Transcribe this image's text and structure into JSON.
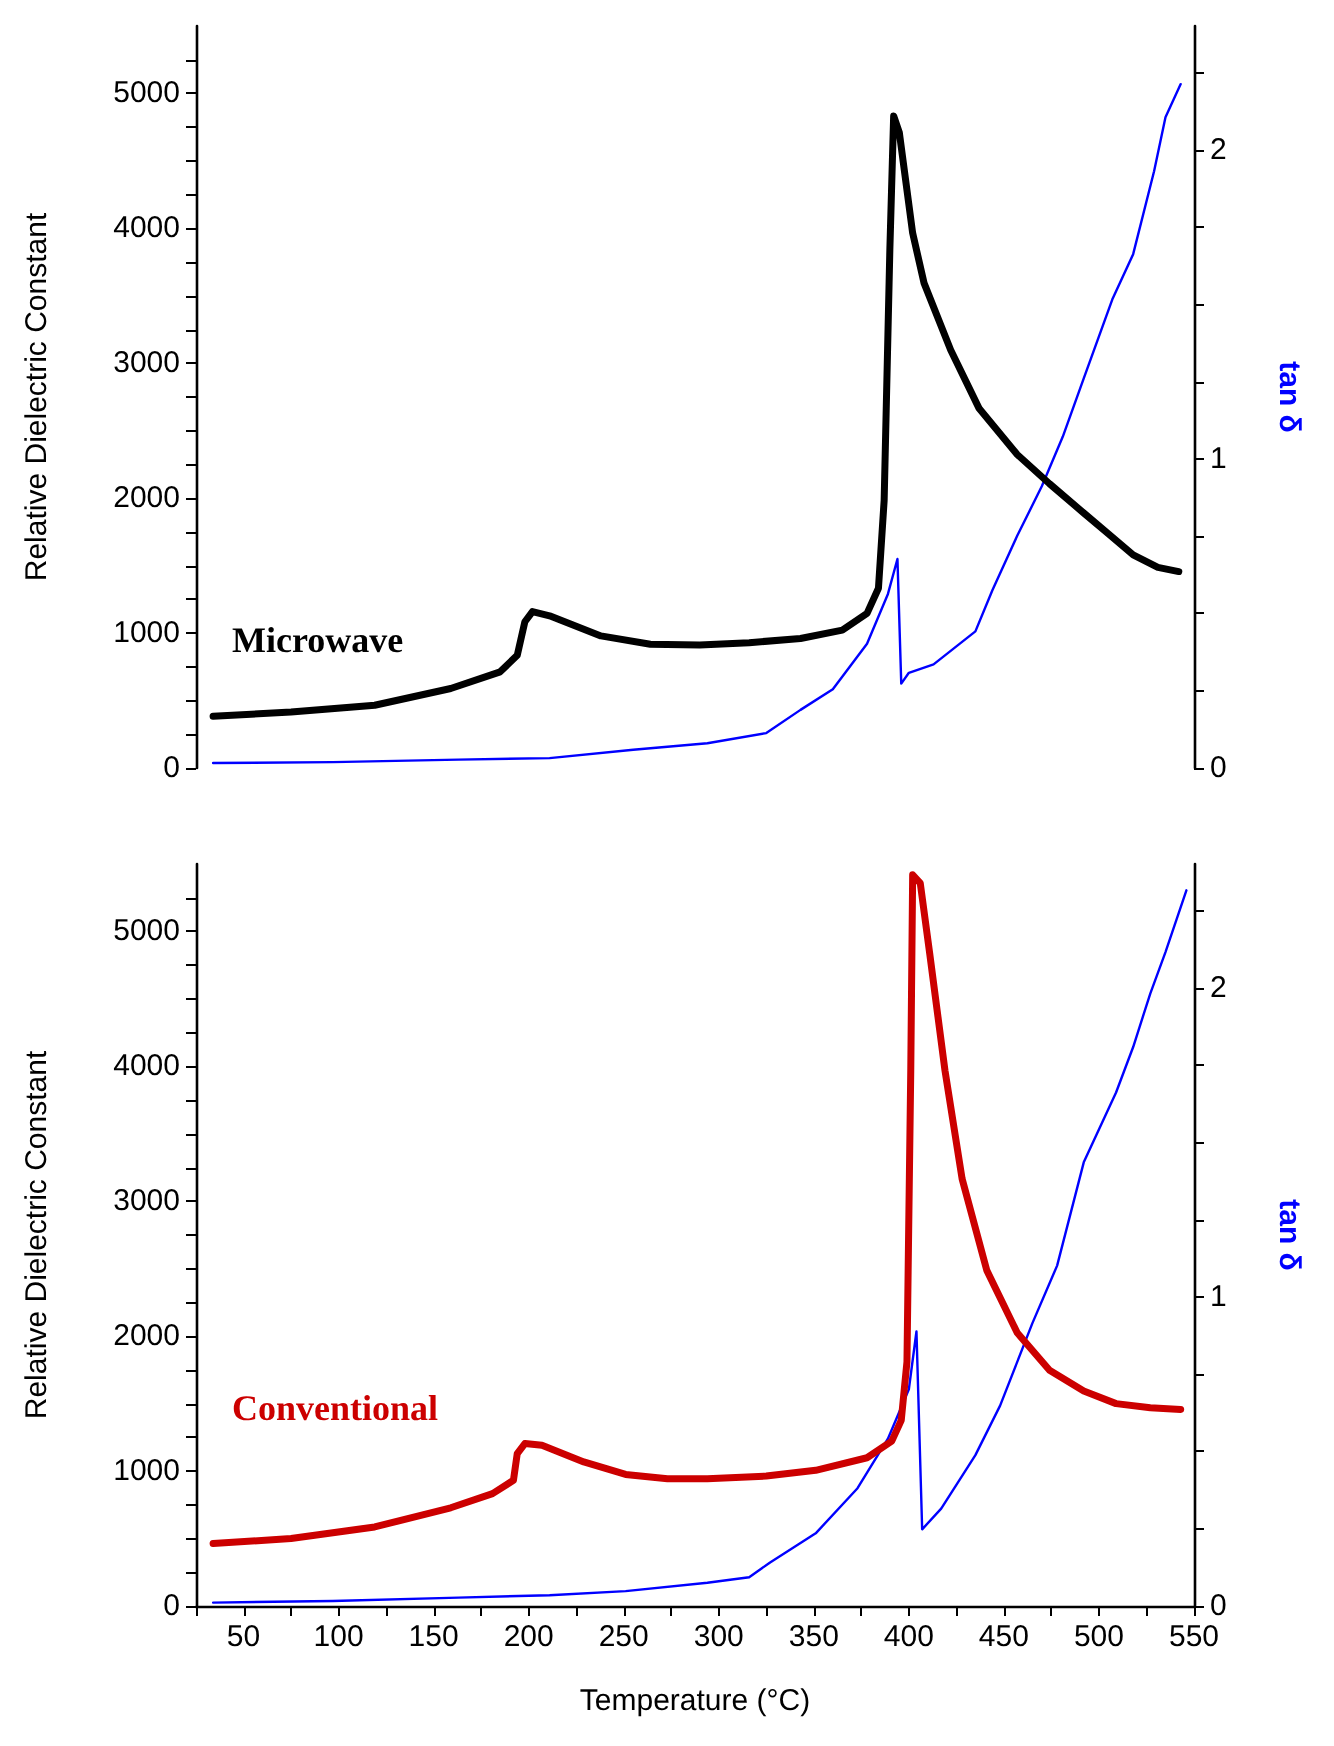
{
  "chart_data": [
    {
      "type": "line",
      "ylabel": "Relative Dielectric Constant",
      "y2label": "tan δ",
      "tick_labels": "y",
      "xlim": [
        25,
        550
      ],
      "ylim": [
        0,
        5500
      ],
      "yticks": [
        0,
        {
          "value": 250,
          "label": null
        },
        {
          "value": 500,
          "label": null
        },
        {
          "value": 750,
          "label": null
        },
        1000,
        {
          "value": 1250,
          "label": null
        },
        {
          "value": 1500,
          "label": null
        },
        {
          "value": 1750,
          "label": null
        },
        2000,
        {
          "value": 2250,
          "label": null
        },
        {
          "value": 2500,
          "label": null
        },
        {
          "value": 2750,
          "label": null
        },
        3000,
        {
          "value": 3250,
          "label": null
        },
        {
          "value": 3500,
          "label": null
        },
        {
          "value": 3750,
          "label": null
        },
        4000,
        {
          "value": 4250,
          "label": null
        },
        {
          "value": 4500,
          "label": null
        },
        {
          "value": 4750,
          "label": null
        },
        5000,
        {
          "value": 5250,
          "label": null
        }
      ],
      "y2lim": [
        0,
        2.4
      ],
      "y2ticks": [
        0,
        {
          "value": 0.25,
          "label": null
        },
        {
          "value": 0.5,
          "label": null
        },
        {
          "value": 0.75,
          "label": null
        },
        1,
        {
          "value": 1.25,
          "label": null
        },
        {
          "value": 1.5,
          "label": null
        },
        {
          "value": 1.75,
          "label": null
        },
        2,
        {
          "value": 2.25,
          "label": null
        }
      ],
      "series": [
        {
          "name": "Microwave",
          "color": "#000000",
          "x": [
            34,
            75,
            119,
            159,
            185,
            194,
            198,
            202,
            211,
            238,
            264,
            290,
            316,
            343,
            365,
            378,
            384,
            387,
            390,
            392,
            395,
            402,
            408,
            422,
            437,
            457,
            474,
            492,
            505,
            518,
            531,
            542
          ],
          "values": [
            384,
            415,
            465,
            589,
            713,
            836,
            1084,
            1159,
            1128,
            979,
            917,
            911,
            929,
            960,
            1022,
            1146,
            1332,
            1983,
            3841,
            4833,
            4709,
            3965,
            3594,
            3098,
            2664,
            2324,
            2107,
            1890,
            1735,
            1580,
            1487,
            1456
          ]
        },
        {
          "color": "#0000ff",
          "axis": "y2",
          "x": [
            34,
            97,
            163,
            211,
            255,
            294,
            325,
            343,
            360,
            378,
            389,
            394,
            396,
            400,
            413,
            435,
            444,
            457,
            470,
            481,
            492,
            507,
            518,
            529,
            535,
            543
          ],
          "values": [
            0.016,
            0.019,
            0.027,
            0.032,
            0.059,
            0.08,
            0.113,
            0.188,
            0.255,
            0.402,
            0.563,
            0.676,
            0.273,
            0.308,
            0.335,
            0.442,
            0.576,
            0.751,
            0.912,
            1.072,
            1.26,
            1.515,
            1.662,
            1.93,
            2.105,
            2.212
          ]
        }
      ]
    },
    {
      "type": "line",
      "xlabel": "Temperature (°C)",
      "ylabel": "Relative Dielectric Constant",
      "y2label": "tan δ",
      "xlim": [
        25,
        550
      ],
      "xticks": [
        {
          "value": 25,
          "label": null
        },
        50,
        {
          "value": 75,
          "label": null
        },
        100,
        {
          "value": 125,
          "label": null
        },
        150,
        {
          "value": 175,
          "label": null
        },
        200,
        {
          "value": 225,
          "label": null
        },
        250,
        {
          "value": 275,
          "label": null
        },
        300,
        {
          "value": 325,
          "label": null
        },
        350,
        {
          "value": 375,
          "label": null
        },
        400,
        {
          "value": 425,
          "label": null
        },
        450,
        {
          "value": 475,
          "label": null
        },
        500,
        {
          "value": 525,
          "label": null
        },
        550
      ],
      "ylim": [
        0,
        5500
      ],
      "yticks": [
        0,
        {
          "value": 250,
          "label": null
        },
        {
          "value": 500,
          "label": null
        },
        {
          "value": 750,
          "label": null
        },
        1000,
        {
          "value": 1250,
          "label": null
        },
        {
          "value": 1500,
          "label": null
        },
        {
          "value": 1750,
          "label": null
        },
        2000,
        {
          "value": 2250,
          "label": null
        },
        {
          "value": 2500,
          "label": null
        },
        {
          "value": 2750,
          "label": null
        },
        3000,
        {
          "value": 3250,
          "label": null
        },
        {
          "value": 3500,
          "label": null
        },
        {
          "value": 3750,
          "label": null
        },
        4000,
        {
          "value": 4250,
          "label": null
        },
        {
          "value": 4500,
          "label": null
        },
        {
          "value": 4750,
          "label": null
        },
        5000,
        {
          "value": 5250,
          "label": null
        }
      ],
      "y2lim": [
        0,
        2.4
      ],
      "y2ticks": [
        0,
        {
          "value": 0.25,
          "label": null
        },
        {
          "value": 0.5,
          "label": null
        },
        {
          "value": 0.75,
          "label": null
        },
        1,
        {
          "value": 1.25,
          "label": null
        },
        {
          "value": 1.5,
          "label": null
        },
        {
          "value": 1.75,
          "label": null
        },
        2,
        {
          "value": 2.25,
          "label": null
        }
      ],
      "series": [
        {
          "name": "Conventional",
          "color": "#cc0000",
          "x": [
            34,
            75,
            119,
            159,
            181,
            192,
            194,
            198,
            207,
            229,
            251,
            273,
            294,
            325,
            351,
            378,
            391,
            396,
            399,
            401,
            402,
            406,
            411,
            419,
            428,
            441,
            457,
            474,
            492,
            509,
            527,
            543
          ],
          "values": [
            463,
            500,
            586,
            728,
            833,
            932,
            1130,
            1204,
            1191,
            1068,
            975,
            944,
            944,
            963,
            1006,
            1099,
            1222,
            1377,
            1809,
            3969,
            5420,
            5358,
            4833,
            3969,
            3167,
            2488,
            2025,
            1747,
            1593,
            1500,
            1469,
            1457
          ]
        },
        {
          "color": "#0000ff",
          "axis": "y2",
          "x": [
            34,
            97,
            163,
            211,
            251,
            294,
            316,
            327,
            351,
            373,
            389,
            400,
            404,
            407,
            417,
            435,
            448,
            465,
            478,
            492,
            509,
            518,
            527,
            535,
            546
          ],
          "values": [
            0.011,
            0.016,
            0.027,
            0.035,
            0.048,
            0.075,
            0.093,
            0.141,
            0.235,
            0.381,
            0.541,
            0.701,
            0.888,
            0.248,
            0.315,
            0.488,
            0.648,
            0.915,
            1.101,
            1.435,
            1.661,
            1.808,
            1.981,
            2.115,
            2.315
          ]
        }
      ]
    }
  ]
}
